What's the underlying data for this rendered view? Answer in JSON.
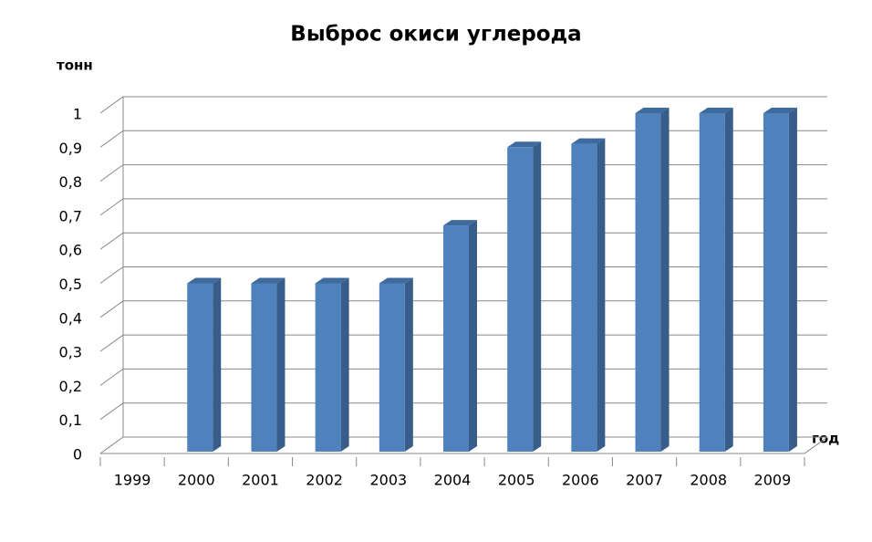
{
  "chart_data": {
    "type": "bar3d",
    "title": "Выброс окиси углерода",
    "y_label": "тонн",
    "x_label": "год",
    "categories": [
      "1999",
      "2000",
      "2001",
      "2002",
      "2003",
      "2004",
      "2005",
      "2006",
      "2007",
      "2008",
      "2009"
    ],
    "values": [
      0,
      0.5,
      0.5,
      0.5,
      0.5,
      0.67,
      0.9,
      0.91,
      1,
      1,
      1
    ],
    "color": "#4f81bd",
    "ylim": [
      0,
      1
    ],
    "yticks": [
      0,
      {
        "value": 0.1,
        "label": "0,1"
      },
      {
        "value": 0.2,
        "label": "0,2"
      },
      {
        "value": 0.3,
        "label": "0,3"
      },
      {
        "value": 0.4,
        "label": "0,4"
      },
      {
        "value": 0.5,
        "label": "0,5"
      },
      {
        "value": 0.6,
        "label": "0,6"
      },
      {
        "value": 0.7,
        "label": "0,7"
      },
      {
        "value": 0.8,
        "label": "0,8"
      },
      {
        "value": 0.9,
        "label": "0,9"
      },
      1
    ],
    "grid": true
  }
}
